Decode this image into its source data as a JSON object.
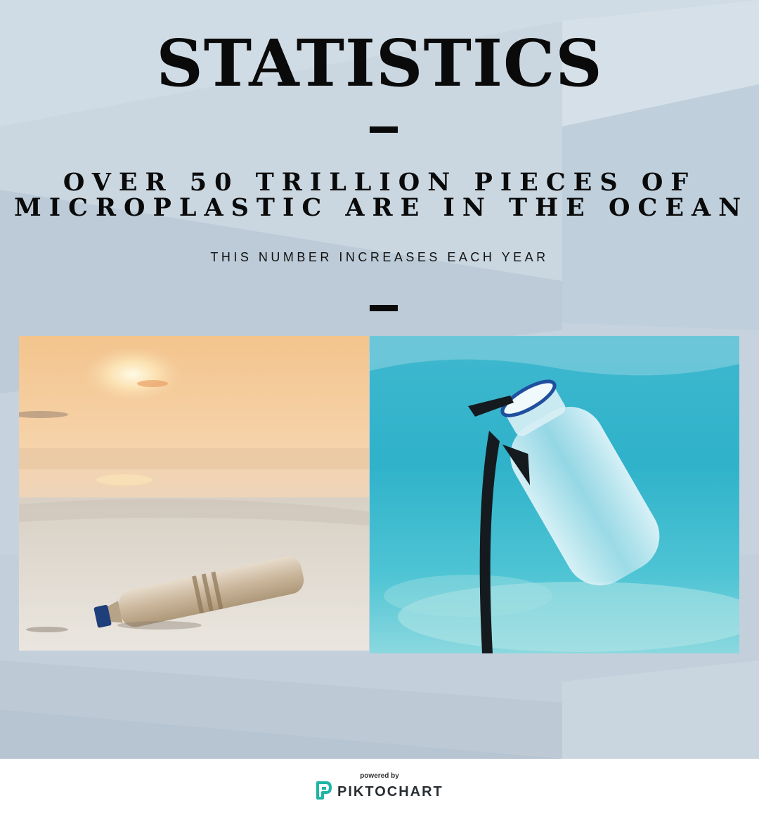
{
  "title": "STATISTICS",
  "headline": {
    "line1": "OVER 50 TRILLION PIECES OF",
    "line2": "MICROPLASTIC ARE IN THE OCEAN"
  },
  "subline": "THIS NUMBER INCREASES EACH YEAR",
  "images": {
    "left": "plastic bottle on beach at sunset",
    "right": "plastic bottle floating underwater"
  },
  "footer": {
    "powered_by": "powered by",
    "brand": "PIKTOCHART"
  },
  "colors": {
    "background": "#c6d3de",
    "text": "#0a0a0a",
    "brand_accent": "#1fb5a5"
  }
}
